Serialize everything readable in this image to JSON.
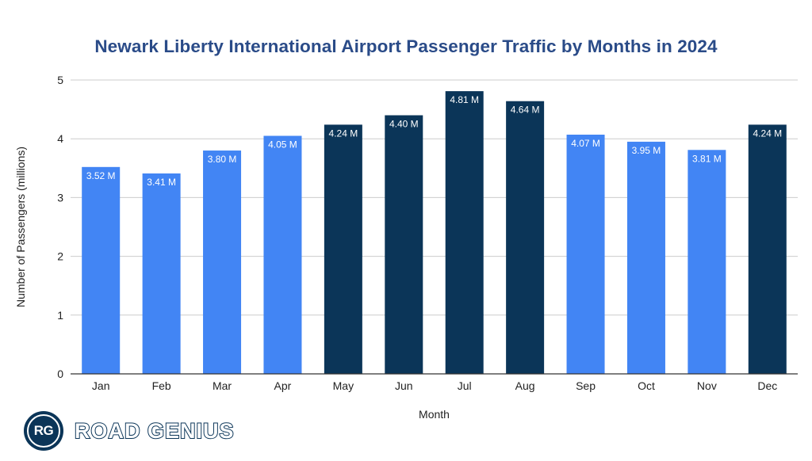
{
  "chart_data": {
    "type": "bar",
    "title": "Newark Liberty International Airport Passenger Traffic by Months in 2024",
    "xlabel": "Month",
    "ylabel": "Number of Passengers (millions)",
    "ylim": [
      0,
      5
    ],
    "yticks": [
      "0",
      "1",
      "2",
      "3",
      "4",
      "5"
    ],
    "grid": true,
    "categories": [
      "Jan",
      "Feb",
      "Mar",
      "Apr",
      "May",
      "Jun",
      "Jul",
      "Aug",
      "Sep",
      "Oct",
      "Nov",
      "Dec"
    ],
    "values": [
      3.52,
      3.41,
      3.8,
      4.05,
      4.24,
      4.4,
      4.81,
      4.64,
      4.07,
      3.95,
      3.81,
      4.24
    ],
    "data_labels": [
      "3.52 M",
      "3.41 M",
      "3.80 M",
      "4.05 M",
      "4.24 M",
      "4.40 M",
      "4.81 M",
      "4.64 M",
      "4.07 M",
      "3.95 M",
      "3.81 M",
      "4.24 M"
    ],
    "highlighted": [
      false,
      false,
      false,
      false,
      true,
      true,
      true,
      true,
      false,
      false,
      false,
      true
    ],
    "colors": {
      "normal": "#4285f4",
      "highlight": "#0b3558",
      "label": "#ffffff",
      "grid": "#cccccc",
      "axis": "#333333",
      "text": "#222222"
    }
  },
  "brand": {
    "monogram": "RG",
    "name": "ROAD GENIUS"
  }
}
